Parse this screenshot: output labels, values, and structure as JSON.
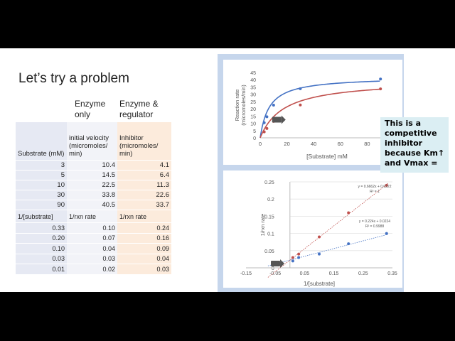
{
  "slide": {
    "title": "Let’s try a problem",
    "enzyme_only": "Enzyme only",
    "enzyme_regulator": "Enzyme & regulator"
  },
  "table1": {
    "headers": [
      "Substrate (mM)",
      "initial velocity (micromoles/ min)",
      "Inhibitor (micromoles/ min)"
    ],
    "rows": [
      [
        "3",
        "10.4",
        "4.1"
      ],
      [
        "5",
        "14.5",
        "6.4"
      ],
      [
        "10",
        "22.5",
        "11.3"
      ],
      [
        "30",
        "33.8",
        "22.6"
      ],
      [
        "90",
        "40.5",
        "33.7"
      ]
    ]
  },
  "table2": {
    "headers": [
      "1/[substrate]",
      "1/rxn rate",
      "1/rxn rate"
    ],
    "rows": [
      [
        "0.33",
        "0.10",
        "0.24"
      ],
      [
        "0.20",
        "0.07",
        "0.16"
      ],
      [
        "0.10",
        "0.04",
        "0.09"
      ],
      [
        "0.03",
        "0.03",
        "0.04"
      ],
      [
        "0.01",
        "0.02",
        "0.03"
      ]
    ]
  },
  "callout": "This is a competitive inhibitor because Km↑ and Vmax =",
  "colors": {
    "blue_series": "#4472c4",
    "red_series": "#c0504d",
    "panel": "#c6d6ec",
    "callout": "#dbeef3"
  },
  "chart_data": [
    {
      "type": "line",
      "title": "",
      "xlabel": "[Substrate] mM",
      "ylabel": "Reaction rate (micromoles/min)",
      "xlim": [
        0,
        100
      ],
      "ylim": [
        0,
        45
      ],
      "xticks": [
        "0",
        "20",
        "40",
        "60",
        "80"
      ],
      "yticks": [
        "0",
        "5",
        "10",
        "15",
        "20",
        "25",
        "30",
        "35",
        "40",
        "45"
      ],
      "series": [
        {
          "x": [
            3,
            5,
            10,
            30,
            90
          ],
          "y": [
            10.4,
            14.5,
            22.5,
            33.8,
            40.5
          ],
          "color": "#4472c4"
        },
        {
          "x": [
            3,
            5,
            10,
            30,
            90
          ],
          "y": [
            4.1,
            6.4,
            11.3,
            22.6,
            33.7
          ],
          "color": "#c0504d"
        }
      ],
      "grid": false
    },
    {
      "type": "scatter",
      "title": "",
      "xlabel": "1/[substrate]",
      "ylabel": "1/rxn rate",
      "xlim": [
        -0.15,
        0.35
      ],
      "ylim": [
        0,
        0.25
      ],
      "xticks": [
        "-0.15",
        "-0.05",
        "0.05",
        "0.15",
        "0.25",
        "0.35"
      ],
      "yticks": [
        "0",
        "0.05",
        "0.1",
        "0.15",
        "0.2",
        "0.25"
      ],
      "series": [
        {
          "x": [
            0.01,
            0.03,
            0.1,
            0.2,
            0.33
          ],
          "y": [
            0.02,
            0.03,
            0.04,
            0.07,
            0.1
          ],
          "color": "#4472c4"
        },
        {
          "x": [
            0.01,
            0.03,
            0.1,
            0.2,
            0.33
          ],
          "y": [
            0.03,
            0.04,
            0.09,
            0.16,
            0.24
          ],
          "color": "#c0504d"
        }
      ],
      "annotations": [
        "y = 0.6662x + 0.0222",
        "R² = 1",
        "y = 0.224x + 0.0224",
        "R² = 0.9988"
      ],
      "grid": true
    }
  ]
}
